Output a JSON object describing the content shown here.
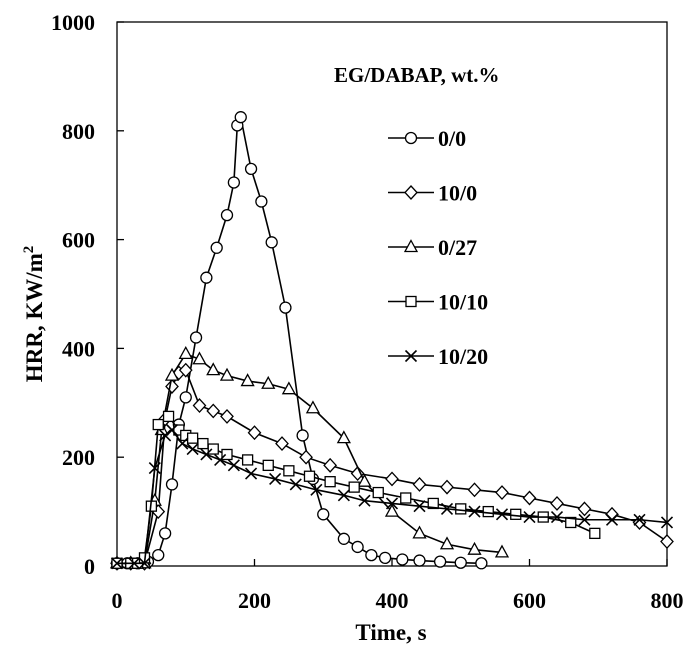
{
  "chart_data": {
    "type": "line",
    "title": "",
    "xlabel": "Time, s",
    "ylabel": "HRR, KW/m",
    "ylabel_sup": "2",
    "xlim": [
      0,
      800
    ],
    "ylim": [
      0,
      1000
    ],
    "xticks": [
      0,
      200,
      400,
      600,
      800
    ],
    "yticks": [
      0,
      200,
      400,
      600,
      800,
      1000
    ],
    "grid": false,
    "legend": {
      "title": "EG/DABAP, wt.%",
      "placement": "top-right"
    },
    "series": [
      {
        "name": "0/0",
        "marker": "circle",
        "x": [
          0,
          15,
          30,
          45,
          60,
          70,
          80,
          90,
          100,
          115,
          130,
          145,
          160,
          170,
          175,
          180,
          195,
          210,
          225,
          245,
          270,
          285,
          300,
          330,
          350,
          370,
          390,
          415,
          440,
          470,
          500,
          530
        ],
        "y": [
          5,
          5,
          5,
          8,
          20,
          60,
          150,
          260,
          310,
          420,
          530,
          585,
          645,
          705,
          810,
          825,
          730,
          670,
          595,
          475,
          240,
          160,
          95,
          50,
          35,
          20,
          15,
          12,
          10,
          8,
          6,
          5
        ]
      },
      {
        "name": "10/0",
        "marker": "diamond",
        "x": [
          0,
          20,
          40,
          60,
          70,
          80,
          90,
          100,
          120,
          140,
          160,
          200,
          240,
          275,
          310,
          350,
          400,
          440,
          480,
          520,
          560,
          600,
          640,
          680,
          720,
          760,
          800
        ],
        "y": [
          5,
          5,
          5,
          100,
          270,
          330,
          355,
          360,
          295,
          285,
          275,
          245,
          225,
          200,
          185,
          170,
          160,
          150,
          145,
          140,
          135,
          125,
          115,
          105,
          95,
          80,
          45
        ]
      },
      {
        "name": "0/27",
        "marker": "triangle",
        "x": [
          0,
          20,
          40,
          55,
          65,
          80,
          100,
          120,
          140,
          160,
          190,
          220,
          250,
          285,
          330,
          360,
          400,
          440,
          480,
          520,
          560
        ],
        "y": [
          5,
          5,
          5,
          120,
          250,
          350,
          390,
          380,
          360,
          350,
          340,
          335,
          325,
          290,
          235,
          155,
          100,
          60,
          40,
          30,
          25
        ]
      },
      {
        "name": "10/10",
        "marker": "square",
        "x": [
          0,
          20,
          30,
          40,
          50,
          60,
          75,
          90,
          100,
          110,
          125,
          140,
          160,
          190,
          220,
          250,
          280,
          310,
          345,
          380,
          420,
          460,
          500,
          540,
          580,
          620,
          660,
          695
        ],
        "y": [
          5,
          5,
          5,
          15,
          110,
          260,
          275,
          250,
          240,
          235,
          225,
          215,
          205,
          195,
          185,
          175,
          165,
          155,
          145,
          135,
          125,
          115,
          105,
          100,
          95,
          90,
          80,
          60
        ]
      },
      {
        "name": "10/20",
        "marker": "x",
        "x": [
          0,
          25,
          40,
          55,
          70,
          80,
          95,
          110,
          130,
          150,
          170,
          195,
          230,
          260,
          290,
          330,
          360,
          400,
          440,
          480,
          520,
          560,
          600,
          640,
          680,
          720,
          760,
          800
        ],
        "y": [
          5,
          5,
          5,
          180,
          240,
          250,
          225,
          215,
          205,
          195,
          185,
          170,
          160,
          150,
          140,
          130,
          120,
          115,
          110,
          105,
          100,
          95,
          90,
          90,
          85,
          85,
          85,
          80
        ]
      }
    ]
  }
}
